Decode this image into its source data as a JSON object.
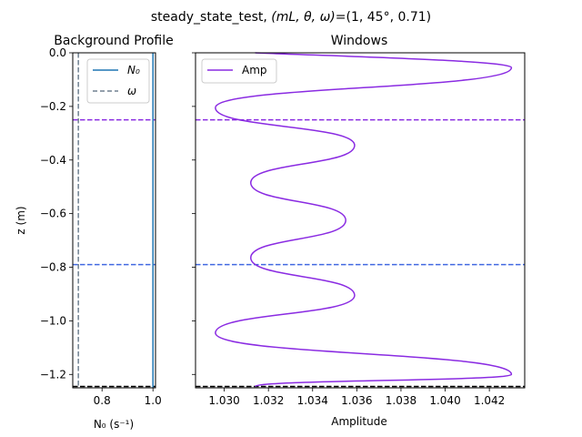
{
  "figure": {
    "suptitle_prefix": "steady_state_test, ",
    "suptitle_vars": "(mL, θ, ω)",
    "suptitle_values": "=(1, 45°, 0.71)"
  },
  "chart_data": [
    {
      "type": "line",
      "title": "Background Profile",
      "xlabel": "N₀ (s⁻¹)",
      "ylabel": "z (m)",
      "xlim": [
        0.685,
        1.01
      ],
      "ylim": [
        -1.25,
        0.0
      ],
      "xticks": [
        0.8,
        1.0
      ],
      "xtick_labels": [
        "0.8",
        "1.0"
      ],
      "yticks": [
        0.0,
        -0.2,
        -0.4,
        -0.6,
        -0.8,
        -1.0,
        -1.2
      ],
      "ytick_labels": [
        "0.0",
        "−0.2",
        "−0.4",
        "−0.6",
        "−0.8",
        "−1.0",
        "−1.2"
      ],
      "legend": {
        "placement": "upper-left",
        "entries": [
          "N₀",
          "ω"
        ]
      },
      "series": [
        {
          "name": "N₀",
          "color": "#1f77b4",
          "style": "solid",
          "x": [
            1.0,
            1.0
          ],
          "z": [
            0.0,
            -1.25
          ]
        },
        {
          "name": "ω",
          "color": "#708090",
          "style": "dashed",
          "x": [
            0.707,
            0.707
          ],
          "z": [
            0.0,
            -1.25
          ]
        }
      ],
      "hlines": [
        {
          "z": -0.25,
          "color": "#8a2be2",
          "style": "dashed"
        },
        {
          "z": -0.79,
          "color": "#4169e1",
          "style": "dashed"
        },
        {
          "z": -1.245,
          "color": "#000000",
          "style": "dashed"
        }
      ]
    },
    {
      "type": "line",
      "title": "Windows",
      "xlabel": "Amplitude",
      "xlim": [
        1.0287,
        1.0436
      ],
      "ylim": [
        -1.25,
        0.0
      ],
      "xticks": [
        1.03,
        1.032,
        1.034,
        1.036,
        1.038,
        1.04,
        1.042
      ],
      "xtick_labels": [
        "1.030",
        "1.032",
        "1.034",
        "1.036",
        "1.038",
        "1.040",
        "1.042"
      ],
      "legend": {
        "placement": "upper-left",
        "entries": [
          "Amp"
        ]
      },
      "series": [
        {
          "name": "Amp",
          "color": "#8a2be2",
          "points": [
            [
              1.043,
              -0.055
            ],
            [
              1.0296,
              -0.205
            ],
            [
              1.0359,
              -0.345
            ],
            [
              1.0312,
              -0.485
            ],
            [
              1.0355,
              -0.625
            ],
            [
              1.0312,
              -0.765
            ],
            [
              1.0359,
              -0.905
            ],
            [
              1.0296,
              -1.045
            ],
            [
              1.043,
              -1.2
            ],
            [
              1.0314,
              -1.245
            ]
          ]
        }
      ],
      "hlines": [
        {
          "z": -0.25,
          "color": "#8a2be2",
          "style": "dashed"
        },
        {
          "z": -0.79,
          "color": "#4169e1",
          "style": "dashed"
        },
        {
          "z": -1.245,
          "color": "#000000",
          "style": "dashed"
        }
      ]
    }
  ]
}
